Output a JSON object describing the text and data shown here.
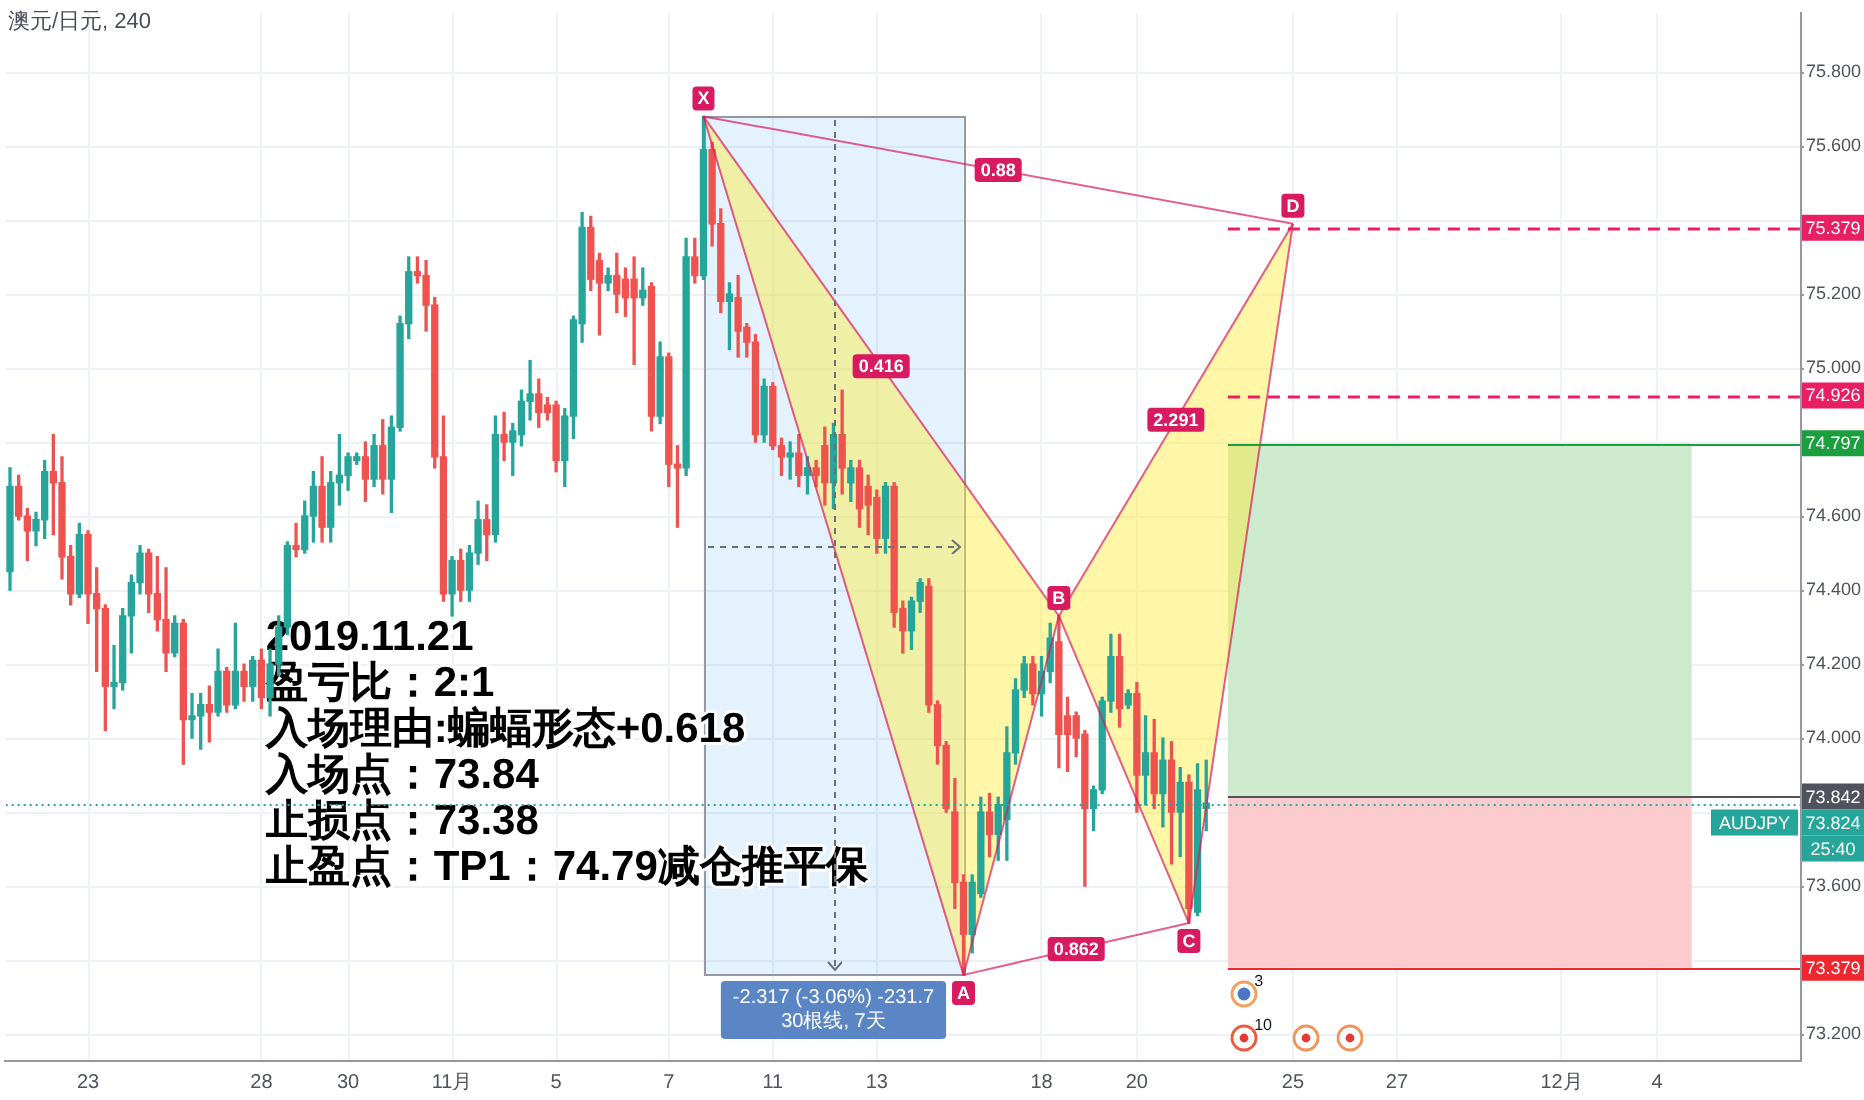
{
  "chart_data": {
    "type": "candlestick",
    "title": "澳元/日元, 240",
    "categories": [
      null,
      null,
      null,
      null,
      null,
      null,
      null,
      null,
      null,
      "23",
      null,
      null,
      null,
      null,
      null,
      null,
      null,
      null,
      null,
      null,
      null,
      null,
      null,
      null,
      null,
      null,
      null,
      null,
      null,
      "28",
      null,
      null,
      null,
      null,
      null,
      null,
      null,
      null,
      null,
      "30",
      null,
      null,
      null,
      null,
      null,
      null,
      null,
      null,
      null,
      null,
      null,
      "11月",
      null,
      null,
      null,
      null,
      null,
      null,
      null,
      null,
      null,
      null,
      null,
      "5",
      null,
      null,
      null,
      null,
      null,
      null,
      null,
      null,
      null,
      null,
      null,
      null,
      "7",
      null,
      null,
      null,
      null,
      null,
      null,
      null,
      null,
      null,
      null,
      null,
      "11",
      null,
      null,
      null,
      null,
      null,
      null,
      null,
      null,
      null,
      null,
      null,
      "13",
      null,
      null,
      null,
      null,
      null,
      null,
      null,
      null,
      null,
      null,
      null,
      null,
      null,
      null,
      null,
      null,
      null,
      null,
      "18",
      null,
      null,
      null,
      null,
      null,
      null,
      null,
      null,
      null,
      null,
      "20",
      null,
      null,
      null,
      null,
      null,
      null,
      null,
      null,
      null,
      null,
      null,
      null,
      null,
      null,
      null,
      null,
      null,
      "25",
      null,
      null,
      null,
      null,
      null,
      null,
      null,
      null,
      null,
      null,
      null,
      "27",
      null,
      null,
      null,
      null,
      null,
      null,
      null,
      null,
      null,
      null,
      null,
      null,
      null,
      null,
      null,
      null,
      null,
      null,
      "12月",
      null,
      null,
      null,
      null,
      null,
      null,
      null,
      null,
      null,
      null,
      "4",
      null,
      null,
      null,
      null,
      null,
      null,
      null,
      null,
      null,
      null,
      null,
      null,
      null,
      null,
      null,
      null
    ],
    "ohlc": [
      [
        74.45,
        74.73,
        74.4,
        74.68
      ],
      [
        74.68,
        74.71,
        74.59,
        74.6
      ],
      [
        74.6,
        74.62,
        74.48,
        74.56
      ],
      [
        74.56,
        74.61,
        74.52,
        74.59
      ],
      [
        74.59,
        74.75,
        74.54,
        74.72
      ],
      [
        74.72,
        74.82,
        74.55,
        74.69
      ],
      [
        74.69,
        74.76,
        74.43,
        74.49
      ],
      [
        74.49,
        74.52,
        74.36,
        74.39
      ],
      [
        74.39,
        74.58,
        74.38,
        74.55
      ],
      [
        74.55,
        74.56,
        74.31,
        74.39
      ],
      [
        74.39,
        74.46,
        74.18,
        74.35
      ],
      [
        74.35,
        74.36,
        74.02,
        74.14
      ],
      [
        74.14,
        74.25,
        74.08,
        74.15
      ],
      [
        74.15,
        74.35,
        74.13,
        74.33
      ],
      [
        74.33,
        74.44,
        74.23,
        74.42
      ],
      [
        74.42,
        74.52,
        74.39,
        74.5
      ],
      [
        74.5,
        74.51,
        74.34,
        74.39
      ],
      [
        74.39,
        74.49,
        74.29,
        74.32
      ],
      [
        74.32,
        74.46,
        74.18,
        74.23
      ],
      [
        74.23,
        74.33,
        74.22,
        74.31
      ],
      [
        74.31,
        74.32,
        73.93,
        74.05
      ],
      [
        74.05,
        74.12,
        74.0,
        74.06
      ],
      [
        74.06,
        74.12,
        73.97,
        74.09
      ],
      [
        74.09,
        74.14,
        73.99,
        74.07
      ],
      [
        74.07,
        74.24,
        74.06,
        74.18
      ],
      [
        74.18,
        74.19,
        74.07,
        74.09
      ],
      [
        74.09,
        74.31,
        74.08,
        74.18
      ],
      [
        74.18,
        74.2,
        74.1,
        74.14
      ],
      [
        74.14,
        74.22,
        74.1,
        74.21
      ],
      [
        74.21,
        74.24,
        74.08,
        74.11
      ],
      [
        74.11,
        74.24,
        74.06,
        74.2
      ],
      [
        74.2,
        74.33,
        74.17,
        74.3
      ],
      [
        74.3,
        74.53,
        74.28,
        74.52
      ],
      [
        74.52,
        74.58,
        74.49,
        74.51
      ],
      [
        74.51,
        74.64,
        74.5,
        74.6
      ],
      [
        74.6,
        74.72,
        74.53,
        74.68
      ],
      [
        74.68,
        74.76,
        74.53,
        74.57
      ],
      [
        74.57,
        74.72,
        74.53,
        74.69
      ],
      [
        74.69,
        74.82,
        74.63,
        74.71
      ],
      [
        74.71,
        74.77,
        74.67,
        74.76
      ],
      [
        74.75,
        74.77,
        74.74,
        74.76
      ],
      [
        74.76,
        74.8,
        74.64,
        74.7
      ],
      [
        74.7,
        74.82,
        74.68,
        74.79
      ],
      [
        74.79,
        74.86,
        74.66,
        74.7
      ],
      [
        74.7,
        74.87,
        74.61,
        74.84
      ],
      [
        74.84,
        75.14,
        74.83,
        75.12
      ],
      [
        75.12,
        75.3,
        75.08,
        75.26
      ],
      [
        75.26,
        75.3,
        75.23,
        75.25
      ],
      [
        75.25,
        75.29,
        75.1,
        75.17
      ],
      [
        75.17,
        75.19,
        74.73,
        74.76
      ],
      [
        74.76,
        74.87,
        74.37,
        74.39
      ],
      [
        74.39,
        74.49,
        74.33,
        74.48
      ],
      [
        74.48,
        74.51,
        74.37,
        74.4
      ],
      [
        74.4,
        74.52,
        74.37,
        74.5
      ],
      [
        74.5,
        74.64,
        74.47,
        74.59
      ],
      [
        74.59,
        74.63,
        74.48,
        74.55
      ],
      [
        74.55,
        74.87,
        74.53,
        74.82
      ],
      [
        74.82,
        74.88,
        74.75,
        74.8
      ],
      [
        74.8,
        74.85,
        74.71,
        74.83
      ],
      [
        74.82,
        74.94,
        74.79,
        74.91
      ],
      [
        74.91,
        75.02,
        74.86,
        74.93
      ],
      [
        74.93,
        74.97,
        74.84,
        74.88
      ],
      [
        74.9,
        74.92,
        74.86,
        74.88
      ],
      [
        74.9,
        74.91,
        74.72,
        74.75
      ],
      [
        74.75,
        74.89,
        74.68,
        74.87
      ],
      [
        74.87,
        75.14,
        74.81,
        75.13
      ],
      [
        75.12,
        75.42,
        75.07,
        75.38
      ],
      [
        75.38,
        75.41,
        75.21,
        75.24
      ],
      [
        75.29,
        75.31,
        75.09,
        75.23
      ],
      [
        75.23,
        75.27,
        75.21,
        75.25
      ],
      [
        75.25,
        75.31,
        75.15,
        75.2
      ],
      [
        75.24,
        75.27,
        75.14,
        75.19
      ],
      [
        75.24,
        75.3,
        75.01,
        75.19
      ],
      [
        75.19,
        75.27,
        75.17,
        75.21
      ],
      [
        75.22,
        75.23,
        74.83,
        74.87
      ],
      [
        74.87,
        75.07,
        74.85,
        75.03
      ],
      [
        75.03,
        75.04,
        74.68,
        74.74
      ],
      [
        74.74,
        74.79,
        74.57,
        74.73
      ],
      [
        74.73,
        75.35,
        74.71,
        75.3
      ],
      [
        75.3,
        75.35,
        75.23,
        75.25
      ],
      [
        75.25,
        75.68,
        75.24,
        75.59
      ],
      [
        75.59,
        75.61,
        75.33,
        75.39
      ],
      [
        75.39,
        75.43,
        75.15,
        75.18
      ],
      [
        75.18,
        75.23,
        75.05,
        75.2
      ],
      [
        75.19,
        75.25,
        75.03,
        75.1
      ],
      [
        75.11,
        75.12,
        75.03,
        75.07
      ],
      [
        75.07,
        75.09,
        74.8,
        74.82
      ],
      [
        74.82,
        74.97,
        74.8,
        74.95
      ],
      [
        74.95,
        74.96,
        74.78,
        74.79
      ],
      [
        74.79,
        74.81,
        74.71,
        74.76
      ],
      [
        74.76,
        74.8,
        74.7,
        74.77
      ],
      [
        74.77,
        74.82,
        74.68,
        74.71
      ],
      [
        74.71,
        74.76,
        74.66,
        74.73
      ],
      [
        74.73,
        74.75,
        74.68,
        74.71
      ],
      [
        74.79,
        74.84,
        74.63,
        74.69
      ],
      [
        74.69,
        74.85,
        74.62,
        74.82
      ],
      [
        74.82,
        74.94,
        74.66,
        74.73
      ],
      [
        74.69,
        74.75,
        74.64,
        74.73
      ],
      [
        74.73,
        74.75,
        74.57,
        74.62
      ],
      [
        74.68,
        74.71,
        74.55,
        74.63
      ],
      [
        74.65,
        74.67,
        74.5,
        74.54
      ],
      [
        74.54,
        74.69,
        74.5,
        74.68
      ],
      [
        74.68,
        74.69,
        74.3,
        74.34
      ],
      [
        74.35,
        74.37,
        74.23,
        74.29
      ],
      [
        74.29,
        74.38,
        74.24,
        74.37
      ],
      [
        74.37,
        74.43,
        74.34,
        74.42
      ],
      [
        74.41,
        74.43,
        74.07,
        74.09
      ],
      [
        74.09,
        74.1,
        73.93,
        73.98
      ],
      [
        73.98,
        73.99,
        73.8,
        73.81
      ],
      [
        73.8,
        73.89,
        73.54,
        73.61
      ],
      [
        73.61,
        73.63,
        73.36,
        73.47
      ],
      [
        73.47,
        73.63,
        73.42,
        73.61
      ],
      [
        73.58,
        73.84,
        73.57,
        73.8
      ],
      [
        73.8,
        73.85,
        73.68,
        73.74
      ],
      [
        73.74,
        73.84,
        73.67,
        73.82
      ],
      [
        73.78,
        74.03,
        73.67,
        73.96
      ],
      [
        73.96,
        74.16,
        73.93,
        74.13
      ],
      [
        74.13,
        74.22,
        74.11,
        74.2
      ],
      [
        74.2,
        74.22,
        74.09,
        74.12
      ],
      [
        74.12,
        74.22,
        74.06,
        74.18
      ],
      [
        74.18,
        74.31,
        74.15,
        74.27
      ],
      [
        74.26,
        74.33,
        73.92,
        74.01
      ],
      [
        74.06,
        74.11,
        73.91,
        74.01
      ],
      [
        74.06,
        74.07,
        73.95,
        74.0
      ],
      [
        74.01,
        74.02,
        73.6,
        73.81
      ],
      [
        73.81,
        73.87,
        73.75,
        73.86
      ],
      [
        73.86,
        74.11,
        73.85,
        74.1
      ],
      [
        74.1,
        74.28,
        74.07,
        74.22
      ],
      [
        74.22,
        74.28,
        74.03,
        74.08
      ],
      [
        74.09,
        74.13,
        74.08,
        74.12
      ],
      [
        74.12,
        74.15,
        73.8,
        73.9
      ],
      [
        73.9,
        74.06,
        73.82,
        73.96
      ],
      [
        73.96,
        74.05,
        73.81,
        73.85
      ],
      [
        73.85,
        74.0,
        73.76,
        73.94
      ],
      [
        73.94,
        73.99,
        73.66,
        73.8
      ],
      [
        73.8,
        73.92,
        73.68,
        73.88
      ],
      [
        73.88,
        73.9,
        73.5,
        73.54
      ],
      [
        73.53,
        73.93,
        73.52,
        73.86
      ],
      [
        73.81,
        73.94,
        73.75,
        73.824
      ],
      null,
      null,
      null,
      null,
      null,
      null,
      null,
      null,
      null,
      null,
      null,
      null,
      null,
      null,
      null,
      null,
      null,
      null,
      null,
      null,
      null,
      null,
      null,
      null,
      null,
      null,
      null,
      null,
      null,
      null,
      null,
      null,
      null,
      null,
      null,
      null,
      null,
      null,
      null,
      null,
      null,
      null,
      null,
      null,
      null,
      null,
      null,
      null,
      null,
      null,
      null,
      null,
      null,
      null,
      null,
      null,
      null,
      null,
      null,
      null,
      null,
      null,
      null,
      null,
      null,
      null,
      null,
      null
    ],
    "series": [
      {
        "type": "line",
        "color": "#d81b60",
        "values": [
          null,
          null,
          null,
          null,
          null,
          null,
          null,
          null,
          null,
          null,
          null,
          null,
          null,
          null,
          null,
          null,
          null,
          null,
          null,
          null,
          null,
          null,
          null,
          null,
          null,
          null,
          null,
          null,
          null,
          null,
          null,
          null,
          null,
          null,
          null,
          null,
          null,
          null,
          null,
          null,
          null,
          null,
          null,
          null,
          null,
          null,
          null,
          null,
          null,
          null,
          null,
          null,
          null,
          null,
          null,
          null,
          null,
          null,
          null,
          null,
          null,
          null,
          null,
          null,
          null,
          null,
          null,
          null,
          null,
          null,
          null,
          null,
          null,
          null,
          null,
          null,
          null,
          null,
          null,
          null,
          75.68,
          null,
          null,
          null,
          null,
          null,
          null,
          null,
          null,
          null,
          null,
          null,
          null,
          null,
          null,
          null,
          null,
          null,
          null,
          null,
          null,
          null,
          null,
          null,
          null,
          null,
          null,
          null,
          null,
          null,
          73.36,
          null,
          null,
          null,
          null,
          null,
          null,
          null,
          null,
          null,
          null,
          74.33,
          null,
          null,
          null,
          null,
          null,
          null,
          null,
          null,
          null,
          null,
          null,
          null,
          null,
          null,
          73.5,
          null,
          null,
          null,
          null,
          null,
          null,
          null,
          null,
          null,
          null,
          null,
          75.39,
          null,
          null,
          null,
          null,
          null,
          null,
          null,
          null,
          null,
          null,
          null,
          null,
          null,
          null,
          null,
          null,
          null,
          null,
          null,
          null,
          null,
          null,
          null,
          null,
          null,
          null,
          null,
          null,
          null,
          null,
          null,
          null,
          null,
          null,
          null,
          null,
          null,
          null,
          null,
          null,
          null,
          null,
          null,
          null,
          null,
          null,
          null,
          null,
          null,
          null,
          null,
          null,
          null,
          null,
          null,
          null,
          null,
          null
        ],
        "value_labels": [
          null,
          null,
          null,
          null,
          null,
          null,
          null,
          null,
          null,
          null,
          null,
          null,
          null,
          null,
          null,
          null,
          null,
          null,
          null,
          null,
          null,
          null,
          null,
          null,
          null,
          null,
          null,
          null,
          null,
          null,
          null,
          null,
          null,
          null,
          null,
          null,
          null,
          null,
          null,
          null,
          null,
          null,
          null,
          null,
          null,
          null,
          null,
          null,
          null,
          null,
          null,
          null,
          null,
          null,
          null,
          null,
          null,
          null,
          null,
          null,
          null,
          null,
          null,
          null,
          null,
          null,
          null,
          null,
          null,
          null,
          null,
          null,
          null,
          null,
          null,
          null,
          null,
          null,
          null,
          null,
          "X",
          null,
          null,
          null,
          null,
          null,
          null,
          null,
          null,
          null,
          null,
          null,
          null,
          null,
          null,
          null,
          null,
          null,
          null,
          null,
          null,
          null,
          null,
          null,
          null,
          null,
          null,
          null,
          null,
          null,
          "A",
          null,
          null,
          null,
          null,
          null,
          null,
          null,
          null,
          null,
          null,
          "B",
          null,
          null,
          null,
          null,
          null,
          null,
          null,
          null,
          null,
          null,
          null,
          null,
          null,
          null,
          "C",
          null,
          null,
          null,
          null,
          null,
          null,
          null,
          null,
          null,
          null,
          null,
          "D",
          null,
          null,
          null,
          null,
          null,
          null,
          null,
          null,
          null,
          null,
          null,
          null,
          null,
          null,
          null,
          null,
          null,
          null,
          null,
          null,
          null,
          null,
          null,
          null,
          null,
          null,
          null,
          null,
          null,
          null,
          null,
          null,
          null,
          null,
          null,
          null,
          null,
          null,
          null,
          null,
          null,
          null,
          null,
          null,
          null,
          null,
          null,
          null,
          null,
          null,
          null,
          null,
          null,
          null,
          null,
          null,
          null,
          null
        ]
      }
    ],
    "ylim": [
      73.13,
      75.96
    ],
    "yticks": [
      {
        "value": 73.2,
        "label": "73.200"
      },
      {
        "value": 73.4,
        "label": null
      },
      {
        "value": 73.6,
        "label": "73.600"
      },
      {
        "value": 73.8,
        "label": null
      },
      {
        "value": 74.0,
        "label": "74.000"
      },
      {
        "value": 74.2,
        "label": "74.200"
      },
      {
        "value": 74.4,
        "label": "74.400"
      },
      {
        "value": 74.6,
        "label": "74.600"
      },
      {
        "value": 74.8,
        "label": null
      },
      {
        "value": 75.0,
        "label": "75.000"
      },
      {
        "value": 75.2,
        "label": "75.200"
      },
      {
        "value": 75.4,
        "label": null
      },
      {
        "value": 75.6,
        "label": "75.600"
      },
      {
        "value": 75.8,
        "label": "75.800"
      }
    ],
    "grid": true,
    "ref_lines": [
      {
        "axis": "y",
        "value": 75.379,
        "label": "75.379",
        "color": "#e91e63",
        "line_style": "dashed"
      },
      {
        "axis": "y",
        "value": 74.926,
        "label": "74.926",
        "color": "#e91e63",
        "line_style": "dashed"
      },
      {
        "axis": "y",
        "value": 74.797,
        "label": "74.797",
        "color": "#1b9e3e"
      },
      {
        "axis": "y",
        "value": 73.842,
        "label": "73.842",
        "color": "#50535e"
      },
      {
        "axis": "y",
        "value": 73.824,
        "label": "73.824",
        "color": "#26a69a",
        "line_style": "dotted"
      },
      {
        "axis": "y",
        "value": 73.379,
        "label": "73.379",
        "color": "#f0272f"
      }
    ],
    "bands": [
      {
        "axis": "y",
        "from": 73.842,
        "to": 74.797,
        "color": "#cdeacc"
      },
      {
        "axis": "y",
        "from": 73.379,
        "to": 73.842,
        "color": "#fccbcd"
      }
    ],
    "annotations": [
      "2019.11.21\n盈亏比：2:1\n入场理由:蝙蝠形态+0.618\n入场点：73.84\n止损点：73.38\n止盈点：TP1：74.79减仓推平保",
      "0.416",
      "0.88",
      "2.291",
      "0.862",
      "-2.317 (-3.06%) -231.7\n30根线, 7天",
      "3",
      "10",
      "AUDJPY",
      "25:40"
    ]
  }
}
